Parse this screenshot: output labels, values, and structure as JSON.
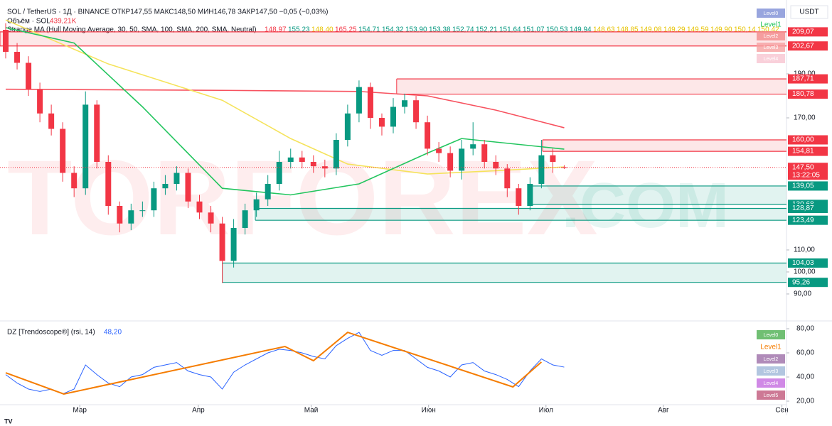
{
  "chart_data": {
    "type": "candlestick",
    "header": "SOL / TetherUS · 1Д · BINANCE  ОТКР147,55  МАКС148,50  МИН146,78  ЗАКР147,50  −0,05 (−0,03%)",
    "volume_label": "Объём · SOL",
    "volume_value": "439,21K",
    "indicator_label": "Strange MA (Hull Moving Average, 30, 50, SMA, 100, SMA, 200, SMA, Neutral)",
    "indicator_values": [
      {
        "label": "148,97",
        "color": "#f23645"
      },
      {
        "label": "155,23",
        "color": "#089981"
      },
      {
        "label": "148,40",
        "color": "#e6c300"
      },
      {
        "label": "165,25",
        "color": "#f23645"
      },
      {
        "label": "154,71",
        "color": "#089981"
      },
      {
        "label": "154,32",
        "color": "#089981"
      },
      {
        "label": "153,90",
        "color": "#089981"
      },
      {
        "label": "153,38",
        "color": "#089981"
      },
      {
        "label": "152,74",
        "color": "#089981"
      },
      {
        "label": "152,21",
        "color": "#089981"
      },
      {
        "label": "151,64",
        "color": "#089981"
      },
      {
        "label": "151,07",
        "color": "#089981"
      },
      {
        "label": "150,53",
        "color": "#089981"
      },
      {
        "label": "149,94",
        "color": "#089981"
      },
      {
        "label": "148,63",
        "color": "#e6c300"
      },
      {
        "label": "148,85",
        "color": "#e6c300"
      },
      {
        "label": "149,08",
        "color": "#e6c300"
      },
      {
        "label": "149,29",
        "color": "#e6c300"
      },
      {
        "label": "149,59",
        "color": "#e6c300"
      },
      {
        "label": "149,90",
        "color": "#e6c300"
      },
      {
        "label": "150,14",
        "color": "#e6c300"
      },
      {
        "label": "150,42",
        "color": "#e6c300"
      }
    ],
    "watermark": "TORFOREX",
    "watermark_suffix": ".COM",
    "currency": "USDT",
    "up_color": "#089981",
    "down_color": "#f23645",
    "open": [
      210,
      200,
      195,
      183,
      172,
      165,
      145,
      138,
      176,
      150,
      130,
      122,
      128,
      128,
      138,
      140,
      145,
      132,
      127,
      122,
      105,
      120,
      128,
      133,
      140,
      150,
      152,
      150,
      148,
      147,
      160,
      172,
      184,
      170,
      166,
      175,
      178,
      168,
      156,
      154,
      146,
      156,
      158,
      150,
      147,
      138,
      130,
      140,
      153,
      147.55
    ],
    "high": [
      213,
      204,
      198,
      186,
      176,
      168,
      148,
      182,
      178,
      153,
      132,
      131,
      132,
      141,
      144,
      148,
      147,
      135,
      130,
      125,
      124,
      131,
      136,
      144,
      155,
      156,
      155,
      153,
      151,
      163,
      176,
      187,
      186,
      172,
      179,
      181,
      180,
      171,
      159,
      157,
      160,
      168,
      160,
      153,
      149,
      140,
      143,
      160,
      156,
      148.5
    ],
    "low": [
      197,
      192,
      180,
      168,
      162,
      141,
      134,
      135,
      147,
      126,
      118,
      119,
      125,
      125,
      135,
      137,
      129,
      124,
      118,
      95,
      102,
      117,
      125,
      130,
      137,
      147,
      147,
      145,
      143,
      144,
      157,
      168,
      165,
      162,
      163,
      172,
      165,
      153,
      150,
      143,
      142,
      153,
      147,
      144,
      134,
      126,
      128,
      138,
      145,
      146.78
    ],
    "close": [
      200,
      195,
      183,
      172,
      165,
      145,
      138,
      176,
      150,
      130,
      122,
      128,
      128,
      138,
      140,
      145,
      132,
      127,
      122,
      105,
      120,
      128,
      133,
      140,
      150,
      152,
      150,
      148,
      147,
      160,
      172,
      184,
      170,
      166,
      175,
      178,
      168,
      156,
      154,
      146,
      156,
      158,
      150,
      147,
      138,
      130,
      140,
      153,
      150,
      147.5
    ],
    "moving_averages": [
      {
        "color": "#f7525f",
        "x": [
          0,
          19,
          31,
          37,
          43,
          49
        ],
        "values": [
          183,
          182.5,
          182,
          180,
          173.5,
          165.5
        ]
      },
      {
        "color": "#f5e35b",
        "x": [
          0,
          9,
          19,
          25,
          30,
          37,
          43,
          49
        ],
        "values": [
          214.5,
          194.5,
          178,
          160.6,
          149,
          144.5,
          146,
          147.7
        ]
      },
      {
        "color": "#22c55e",
        "x": [
          0,
          6,
          12,
          19,
          25,
          31,
          37,
          40,
          49
        ],
        "values": [
          211,
          204,
          175,
          138,
          135,
          140,
          154,
          160.6,
          155.8
        ]
      }
    ],
    "levels": [
      {
        "value": 209.07,
        "label": "209,07",
        "color": "#f23645"
      },
      {
        "value": 202.67,
        "label": "202,67",
        "color": "#f23645"
      },
      {
        "value": 187.71,
        "label": "187,71",
        "color": "#f23645"
      },
      {
        "value": 180.78,
        "label": "180,78",
        "color": "#f23645"
      },
      {
        "value": 160,
        "label": "160,00",
        "color": "#f23645"
      },
      {
        "value": 154.81,
        "label": "154,81",
        "color": "#f23645"
      },
      {
        "value": 139.05,
        "label": "139,05",
        "color": "#089981"
      },
      {
        "value": 130.68,
        "label": "130,68",
        "color": "#089981"
      },
      {
        "value": 128.87,
        "label": "128,87",
        "color": "#089981"
      },
      {
        "value": 123.49,
        "label": "123,49",
        "color": "#089981"
      },
      {
        "value": 104.03,
        "label": "104,03",
        "color": "#089981"
      },
      {
        "value": 95.26,
        "label": "95,26",
        "color": "#089981"
      }
    ],
    "zones": [
      {
        "top": 0,
        "bottom": 1,
        "start": -0.5,
        "color": "#f23645"
      },
      {
        "top": 2,
        "bottom": 3,
        "start": 34.3,
        "color": "#f23645"
      },
      {
        "top": 4,
        "bottom": 5,
        "start": 47.1,
        "color": "#f23645"
      },
      {
        "top": 6,
        "bottom": 7,
        "start": 45.9,
        "color": "#089981"
      },
      {
        "top": 8,
        "bottom": 9,
        "start": 21.9,
        "color": "#089981"
      },
      {
        "top": 10,
        "bottom": 11,
        "start": 19,
        "color": "#089981"
      }
    ],
    "last_price": {
      "value": 147.5,
      "label": "147,50",
      "countdown": "13:22:05",
      "color": "#f23645"
    },
    "ylim": [
      80,
      220
    ],
    "yticks": [
      {
        "value": 190,
        "label": "190,00"
      },
      {
        "value": 170,
        "label": "170,00"
      },
      {
        "value": 110,
        "label": "110,00"
      },
      {
        "value": 100,
        "label": "100,00"
      },
      {
        "value": 90,
        "label": "90,00"
      }
    ],
    "xlim": [
      -0.5,
      68.5
    ],
    "xticks": [
      {
        "value": 6.5,
        "label": "Мар"
      },
      {
        "value": 16.9,
        "label": "Апр"
      },
      {
        "value": 26.8,
        "label": "Май"
      },
      {
        "value": 37.1,
        "label": "Июн"
      },
      {
        "value": 47.4,
        "label": "Июл"
      },
      {
        "value": 57.7,
        "label": "Авг"
      },
      {
        "value": 68.1,
        "label": "Сен"
      }
    ],
    "rsi": {
      "label": "DZ [Trendoscope®] (rsi, 14)",
      "value_label": "48,20",
      "color": "#2962ff",
      "values": [
        42,
        35,
        30,
        28,
        30,
        26,
        30,
        50,
        42,
        35,
        32,
        40,
        42,
        48,
        50,
        52,
        45,
        42,
        40,
        30,
        44,
        50,
        55,
        60,
        63,
        62,
        60,
        57,
        55,
        66,
        72,
        77,
        62,
        58,
        62,
        62,
        55,
        48,
        45,
        40,
        50,
        52,
        45,
        42,
        38,
        32,
        45,
        55,
        50,
        48.2
      ],
      "zigzag": {
        "color": "#f57c00",
        "x": [
          0,
          5.1,
          24.5,
          27,
          30,
          44.5,
          47
        ],
        "values": [
          43.5,
          25.9,
          65.3,
          53.5,
          77,
          31.8,
          52.4
        ]
      },
      "ylim": [
        20,
        80
      ],
      "yticks": [
        {
          "value": 80,
          "label": "80,00"
        },
        {
          "value": 60,
          "label": "60,00"
        },
        {
          "value": 40,
          "label": "40,00"
        },
        {
          "value": 20,
          "label": "20,00"
        }
      ],
      "levels": [
        "Level0",
        "Level1",
        "Level2",
        "Level3",
        "Level4",
        "Level5"
      ]
    },
    "main_levels": [
      "Level0",
      "Level1",
      "Level2",
      "Level3",
      "Level4"
    ]
  }
}
